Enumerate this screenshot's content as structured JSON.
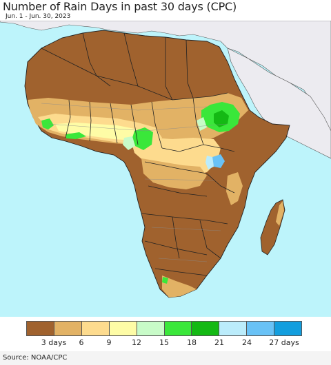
{
  "header": {
    "title": "Number of Rain Days in past 30 days (CPC)",
    "subtitle": "Jun. 1 - Jun. 30, 2023"
  },
  "map": {
    "region": "Africa",
    "colors": {
      "ocean": "#bdf4fb",
      "non_data_land": "#ecebf0",
      "border": "#222222",
      "admin_border": "#8a8a8a"
    }
  },
  "legend": {
    "bins": [
      {
        "color": "#a0622e"
      },
      {
        "color": "#e2b265"
      },
      {
        "color": "#fddb8e"
      },
      {
        "color": "#fefca6"
      },
      {
        "color": "#c8fbc8"
      },
      {
        "color": "#3ae73a"
      },
      {
        "color": "#14b914"
      },
      {
        "color": "#bbecfb"
      },
      {
        "color": "#69c2f6"
      },
      {
        "color": "#139ede"
      }
    ],
    "labels": [
      "3 days",
      "6",
      "9",
      "12",
      "15",
      "18",
      "21",
      "24",
      "27 days"
    ]
  },
  "footer": {
    "source": "Source: NOAA/CPC"
  }
}
